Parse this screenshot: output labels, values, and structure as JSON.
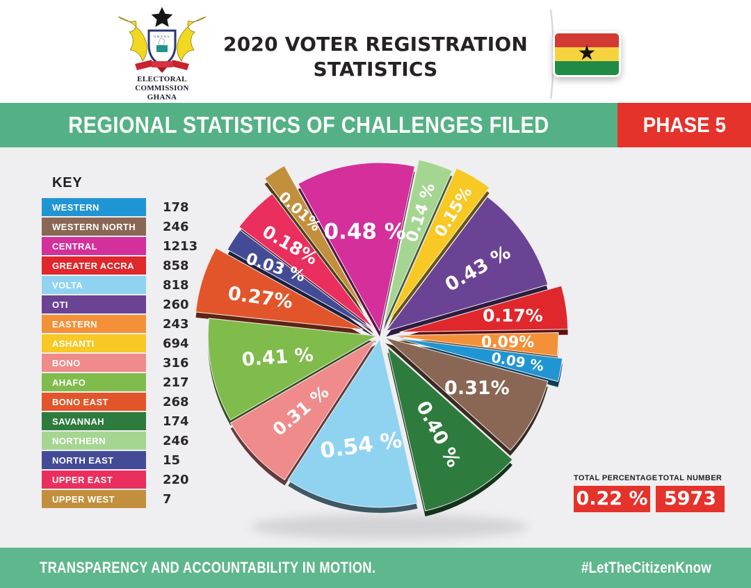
{
  "header": {
    "title_line1": "2020 VOTER REGISTRATION",
    "title_line2": "STATISTICS",
    "logo_caption_line1": "ELECTORAL COMMISSION",
    "logo_caption_line2": "GHANA"
  },
  "banner": {
    "title": "REGIONAL STATISTICS OF CHALLENGES FILED",
    "phase_label": "PHASE 5",
    "banner_color": "#54b185",
    "phase_color": "#e5322b"
  },
  "key": {
    "heading": "KEY"
  },
  "totals": {
    "percentage_label": "TOTAL PERCENTAGE",
    "percentage_value": "0.22 %",
    "number_label": "TOTAL NUMBER",
    "number_value": "5973"
  },
  "footer": {
    "left_text": "TRANSPARENCY AND ACCOUNTABILITY IN MOTION.",
    "right_text": "#LetTheCitizenKnow"
  },
  "chart_data": {
    "type": "pie",
    "title": "Regional statistics of challenges filed — Phase 5",
    "legend_position": "left",
    "total_number": 5973,
    "total_percentage": "0.22 %",
    "start_angle_deg": -29,
    "pie_order": [
      "CENTRAL",
      "NORTHERN",
      "ASHANTI",
      "OTI",
      "GREATER ACCRA",
      "EASTERN",
      "WESTERN",
      "WESTERN NORTH",
      "SAVANNAH",
      "VOLTA",
      "BONO",
      "AHAFO",
      "BONO EAST",
      "NORTH EAST",
      "UPPER EAST",
      "UPPER WEST"
    ],
    "series": [
      {
        "region": "WESTERN",
        "count": 178,
        "pct": 0.09,
        "pct_label": "0.09 %",
        "color": "#2095d3",
        "slice_deg": 8,
        "explode": 22,
        "label_rot": 10,
        "label_r": 0.74,
        "font_size": 20
      },
      {
        "region": "WESTERN NORTH",
        "count": 246,
        "pct": 0.31,
        "pct_label": "0.31%",
        "color": "#8a6754",
        "slice_deg": 27,
        "explode": 8,
        "label_rot": 0,
        "label_r": 0.62,
        "font_size": 27
      },
      {
        "region": "CENTRAL",
        "count": 1213,
        "pct": 0.48,
        "pct_label": "0.48 %",
        "color": "#d42f9a",
        "slice_deg": 41,
        "explode": 6,
        "label_rot": 0,
        "label_r": 0.6,
        "font_size": 31
      },
      {
        "region": "GREATER ACCRA",
        "count": 858,
        "pct": 0.17,
        "pct_label": "0.17%",
        "color": "#df272c",
        "slice_deg": 15,
        "explode": 28,
        "label_rot": 0,
        "label_r": 0.68,
        "font_size": 25
      },
      {
        "region": "VOLTA",
        "count": 818,
        "pct": 0.54,
        "pct_label": "0.54 %",
        "color": "#90d3f1",
        "slice_deg": 46,
        "explode": 6,
        "label_rot": -8,
        "label_r": 0.64,
        "font_size": 31
      },
      {
        "region": "OTI",
        "count": 260,
        "pct": 0.43,
        "pct_label": "0.43 %",
        "color": "#6b4394",
        "slice_deg": 37,
        "explode": 10,
        "label_rot": -30,
        "label_r": 0.66,
        "font_size": 27
      },
      {
        "region": "EASTERN",
        "count": 243,
        "pct": 0.09,
        "pct_label": "0.09%",
        "color": "#f49038",
        "slice_deg": 8,
        "explode": 14,
        "label_rot": 0,
        "label_r": 0.7,
        "font_size": 22
      },
      {
        "region": "ASHANTI",
        "count": 694,
        "pct": 0.15,
        "pct_label": "0.15%",
        "color": "#f8c824",
        "slice_deg": 13,
        "explode": 22,
        "label_rot": -58,
        "label_r": 0.76,
        "font_size": 23
      },
      {
        "region": "BONO",
        "count": 316,
        "pct": 0.31,
        "pct_label": "0.31 %",
        "color": "#f08b8b",
        "slice_deg": 27,
        "explode": 8,
        "label_rot": -40,
        "label_r": 0.62,
        "font_size": 25
      },
      {
        "region": "AHAFO",
        "count": 217,
        "pct": 0.41,
        "pct_label": "0.41 %",
        "color": "#80bc4c",
        "slice_deg": 36,
        "explode": 6,
        "label_rot": -4,
        "label_r": 0.6,
        "font_size": 27
      },
      {
        "region": "BONO EAST",
        "count": 268,
        "pct": 0.27,
        "pct_label": "0.27%",
        "color": "#e2552a",
        "slice_deg": 23,
        "explode": 26,
        "label_rot": 8,
        "label_r": 0.64,
        "font_size": 27
      },
      {
        "region": "SAVANNAH",
        "count": 174,
        "pct": 0.4,
        "pct_label": "0.40 %",
        "color": "#2e7b3e",
        "slice_deg": 35,
        "explode": 20,
        "label_rot": 62,
        "label_r": 0.6,
        "font_size": 27
      },
      {
        "region": "NORTHERN",
        "count": 246,
        "pct": 0.14,
        "pct_label": "0.14 %",
        "color": "#a5d691",
        "slice_deg": 12,
        "explode": 16,
        "label_rot": -72,
        "label_r": 0.7,
        "font_size": 23
      },
      {
        "region": "NORTH EAST",
        "count": 15,
        "pct": 0.03,
        "pct_label": "0.03 %",
        "color": "#444b96",
        "slice_deg": 8,
        "explode": 10,
        "label_rot": 18,
        "label_r": 0.7,
        "font_size": 23
      },
      {
        "region": "UPPER EAST",
        "count": 220,
        "pct": 0.18,
        "pct_label": "0.18%",
        "color": "#ea2e5e",
        "slice_deg": 16,
        "explode": 14,
        "label_rot": 30,
        "label_r": 0.7,
        "font_size": 25
      },
      {
        "region": "UPPER WEST",
        "count": 7,
        "pct": 0.01,
        "pct_label": "0.01%",
        "color": "#c2903c",
        "slice_deg": 8,
        "explode": 38,
        "label_rot": 42,
        "label_r": 0.72,
        "font_size": 21
      }
    ]
  }
}
